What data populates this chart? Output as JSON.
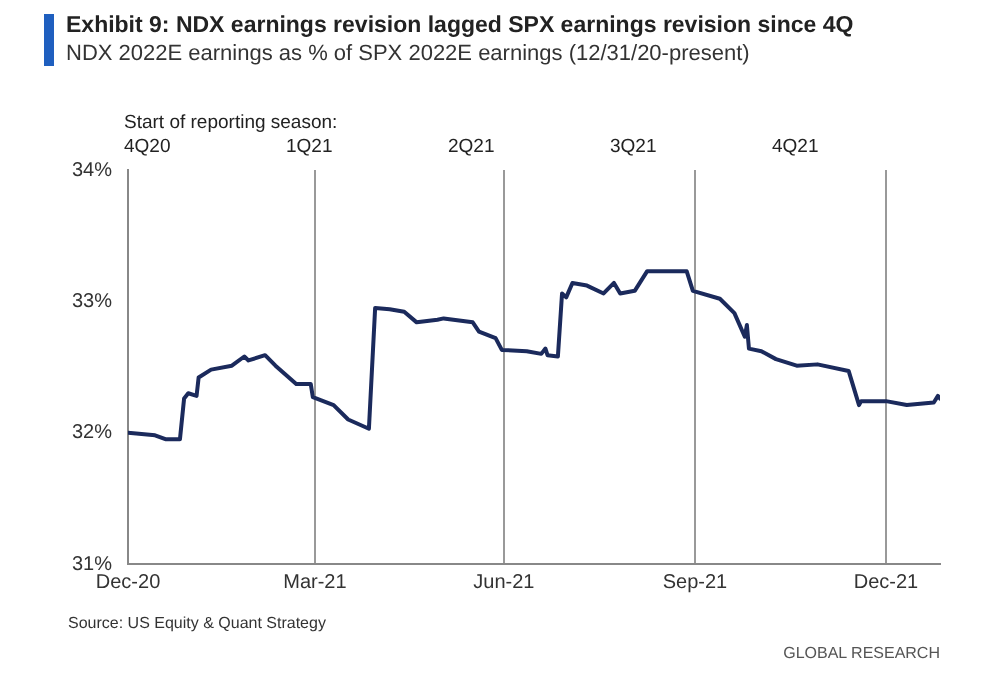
{
  "chart_data": {
    "type": "line",
    "title": "Exhibit 9: NDX earnings revision lagged SPX earnings revision since 4Q",
    "subtitle": "NDX 2022E earnings as % of SPX 2022E earnings (12/31/20-present)",
    "x": [
      "2020-12-31",
      "2021-01-13",
      "2021-01-18",
      "2021-01-25",
      "2021-01-27",
      "2021-01-29",
      "2021-02-02",
      "2021-02-03",
      "2021-02-09",
      "2021-02-19",
      "2021-02-25",
      "2021-02-27",
      "2021-03-07",
      "2021-03-12",
      "2021-03-22",
      "2021-03-29",
      "2021-03-30",
      "2021-04-09",
      "2021-04-16",
      "2021-04-26",
      "2021-04-29",
      "2021-05-06",
      "2021-05-13",
      "2021-05-19",
      "2021-05-29",
      "2021-06-01",
      "2021-06-15",
      "2021-06-18",
      "2021-06-26",
      "2021-06-29",
      "2021-07-11",
      "2021-07-18",
      "2021-07-20",
      "2021-07-21",
      "2021-07-26",
      "2021-07-28",
      "2021-07-30",
      "2021-08-02",
      "2021-08-09",
      "2021-08-17",
      "2021-08-22",
      "2021-08-25",
      "2021-09-01",
      "2021-09-07",
      "2021-09-26",
      "2021-09-29",
      "2021-10-12",
      "2021-10-19",
      "2021-10-24",
      "2021-10-25",
      "2021-10-26",
      "2021-11-01",
      "2021-11-08",
      "2021-11-18",
      "2021-11-28",
      "2021-12-13",
      "2021-12-18",
      "2021-12-19",
      "2021-12-31",
      "2022-01-10",
      "2022-01-23",
      "2022-01-25",
      "2022-01-26"
    ],
    "series": [
      {
        "color": "#1b2a5c",
        "values": [
          32.0,
          31.98,
          31.95,
          31.95,
          32.26,
          32.3,
          32.28,
          32.42,
          32.48,
          32.51,
          32.58,
          32.55,
          32.59,
          32.51,
          32.37,
          32.37,
          32.27,
          32.21,
          32.1,
          32.03,
          32.95,
          32.94,
          32.92,
          32.84,
          32.86,
          32.87,
          32.84,
          32.77,
          32.72,
          32.63,
          32.62,
          32.6,
          32.64,
          32.59,
          32.58,
          33.06,
          33.03,
          33.14,
          33.12,
          33.06,
          33.14,
          33.06,
          33.08,
          33.23,
          33.23,
          33.08,
          33.02,
          32.91,
          32.73,
          32.82,
          32.64,
          32.62,
          32.56,
          32.51,
          32.52,
          32.47,
          32.21,
          32.24,
          32.24,
          32.21,
          32.23,
          32.28,
          32.26
        ]
      }
    ],
    "xlim": [
      "2020-12-31",
      "2022-01-26"
    ],
    "xticks": [
      {
        "value": "2020-12-31",
        "label": "Dec-20"
      },
      {
        "value": "2021-03-31",
        "label": "Mar-21"
      },
      {
        "value": "2021-06-30",
        "label": "Jun-21"
      },
      {
        "value": "2021-09-30",
        "label": "Sep-21"
      },
      {
        "value": "2021-12-31",
        "label": "Dec-21"
      }
    ],
    "ylim": [
      31,
      34
    ],
    "yticks": [
      {
        "value": 31,
        "label": "31%"
      },
      {
        "value": 32,
        "label": "32%"
      },
      {
        "value": 33,
        "label": "33%"
      },
      {
        "value": 34,
        "label": "34%"
      }
    ],
    "grid": "x",
    "legend": false,
    "marker": "none",
    "line_style": "solid",
    "annotations": [
      "Start of reporting  season:",
      "4Q20",
      "1Q21",
      "2Q21",
      "3Q21",
      "4Q21",
      "Source: US Equity & Quant Strategy",
      "GLOBAL RESEARCH"
    ]
  }
}
